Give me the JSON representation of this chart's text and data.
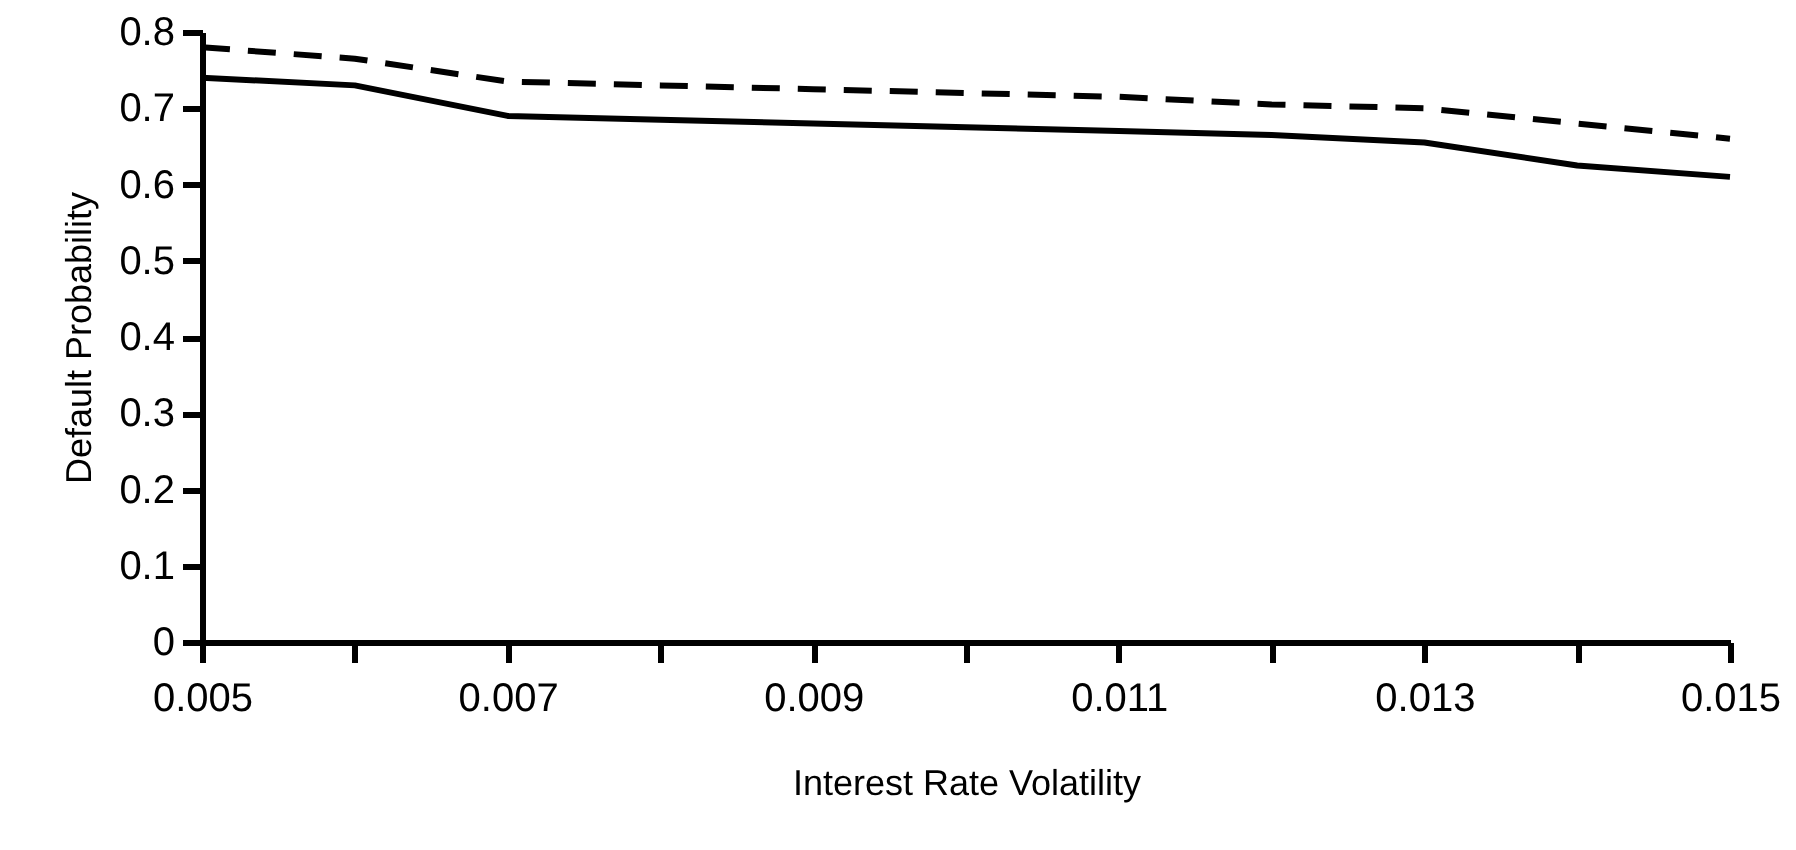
{
  "chart_data": {
    "type": "line",
    "xlabel": "Interest Rate Volatility",
    "ylabel": "Default Probability",
    "x": [
      0.005,
      0.006,
      0.007,
      0.008,
      0.009,
      0.01,
      0.011,
      0.012,
      0.013,
      0.014,
      0.015
    ],
    "series": [
      {
        "color": "#000000",
        "line_style": "solid",
        "values": [
          0.74,
          0.73,
          0.69,
          0.685,
          0.68,
          0.675,
          0.67,
          0.665,
          0.655,
          0.625,
          0.61
        ]
      },
      {
        "color": "#000000",
        "line_style": "dashed",
        "values": [
          0.78,
          0.765,
          0.735,
          0.73,
          0.725,
          0.72,
          0.715,
          0.705,
          0.7,
          0.68,
          0.66
        ]
      }
    ],
    "xlim": [
      0.005,
      0.015
    ],
    "xticks": [
      0.005,
      {
        "value": 0.006,
        "label": null
      },
      0.007,
      {
        "value": 0.008,
        "label": null
      },
      0.009,
      {
        "value": 0.01,
        "label": null
      },
      0.011,
      {
        "value": 0.012,
        "label": null
      },
      0.013,
      {
        "value": 0.014,
        "label": null
      },
      0.015
    ],
    "ylim": [
      0,
      0.8
    ],
    "yticks": [
      0,
      0.1,
      0.2,
      0.3,
      0.4,
      0.5,
      0.6,
      0.7,
      0.8
    ],
    "marker": "none"
  }
}
